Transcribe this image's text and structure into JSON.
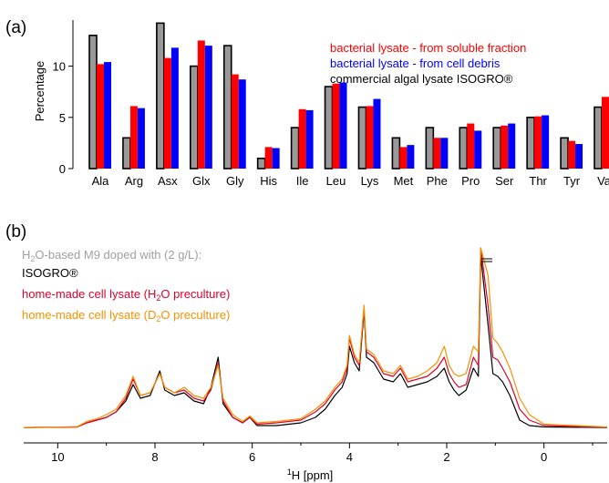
{
  "panel_a": {
    "label": "(a)",
    "legend": [
      {
        "text": "bacterial lysate - from soluble fraction",
        "color": "#ff0000"
      },
      {
        "text": "bacterial lysate - from cell debris",
        "color": "#0000ff"
      },
      {
        "text": "commercial algal lysate ISOGRO®",
        "color": "#000000"
      }
    ]
  },
  "panel_b": {
    "label": "(b)",
    "legend_header_pre": "H",
    "legend_header_sub": "2",
    "legend_header_post": "O-based M9 doped with (2 g/L):",
    "legend_isogro": "ISOGRO®",
    "legend_h2o_pre": "home-made cell lysate (H",
    "legend_h2o_sub": "2",
    "legend_h2o_post": "O preculture)",
    "legend_d2o_pre": "home-made cell lysate (D",
    "legend_d2o_sub": "2",
    "legend_d2o_post": "O preculture)",
    "xlabel_sup": "1",
    "xlabel_main": "H [ppm]"
  },
  "chart_data": [
    {
      "type": "bar",
      "ylabel": "Percentage",
      "ylim": [
        0,
        14.5
      ],
      "yticks": [
        0,
        5,
        10
      ],
      "categories": [
        "Ala",
        "Arg",
        "Asx",
        "Glx",
        "Gly",
        "His",
        "Ile",
        "Leu",
        "Lys",
        "Met",
        "Phe",
        "Pro",
        "Ser",
        "Thr",
        "Tyr",
        "Val"
      ],
      "series": [
        {
          "name": "commercial algal lysate ISOGRO®",
          "color": "#999999",
          "values": [
            13,
            3,
            14.2,
            10,
            12,
            1,
            4,
            8,
            6,
            3,
            4,
            4,
            4,
            5,
            3,
            6
          ]
        },
        {
          "name": "bacterial lysate - from soluble fraction",
          "color": "#ff0000",
          "values": [
            10.2,
            6.1,
            10.8,
            12.5,
            9.2,
            2.1,
            5.8,
            8.3,
            6.1,
            2.1,
            3,
            4.4,
            4.2,
            5.1,
            2.7,
            7
          ]
        },
        {
          "name": "bacterial lysate - from cell debris",
          "color": "#0000ff",
          "values": [
            10.4,
            5.9,
            11.8,
            12,
            8.7,
            2,
            5.7,
            8.4,
            6.8,
            2.3,
            3,
            3.7,
            4.4,
            5.2,
            2.4,
            7
          ]
        }
      ],
      "legend_position": "top-right"
    },
    {
      "type": "line",
      "xlim": [
        10.7,
        -1.3
      ],
      "xticks": [
        10,
        8,
        6,
        4,
        2,
        0
      ],
      "series": [
        {
          "name": "ISOGRO®",
          "color": "#000000",
          "points": [
            [
              10.7,
              0.3
            ],
            [
              9.6,
              0.5
            ],
            [
              9.4,
              2
            ],
            [
              9.2,
              3
            ],
            [
              9.0,
              4
            ],
            [
              8.8,
              6
            ],
            [
              8.6,
              10
            ],
            [
              8.45,
              16
            ],
            [
              8.3,
              11
            ],
            [
              8.1,
              12
            ],
            [
              7.9,
              21
            ],
            [
              7.8,
              14
            ],
            [
              7.6,
              12
            ],
            [
              7.4,
              13
            ],
            [
              7.2,
              10
            ],
            [
              7.0,
              9
            ],
            [
              6.85,
              15
            ],
            [
              6.7,
              26
            ],
            [
              6.6,
              9
            ],
            [
              6.4,
              4
            ],
            [
              6.2,
              2
            ],
            [
              6.05,
              4
            ],
            [
              5.9,
              1
            ],
            [
              5.5,
              1
            ],
            [
              5.0,
              2
            ],
            [
              4.7,
              4
            ],
            [
              4.5,
              7
            ],
            [
              4.3,
              12
            ],
            [
              4.15,
              15
            ],
            [
              4.05,
              20
            ],
            [
              4.0,
              30
            ],
            [
              3.9,
              24
            ],
            [
              3.8,
              21
            ],
            [
              3.7,
              43
            ],
            [
              3.65,
              26
            ],
            [
              3.5,
              24
            ],
            [
              3.3,
              18
            ],
            [
              3.1,
              17
            ],
            [
              2.95,
              20
            ],
            [
              2.8,
              15
            ],
            [
              2.6,
              16
            ],
            [
              2.4,
              17
            ],
            [
              2.2,
              19
            ],
            [
              2.05,
              22
            ],
            [
              1.95,
              17
            ],
            [
              1.85,
              14
            ],
            [
              1.75,
              12
            ],
            [
              1.6,
              14
            ],
            [
              1.45,
              22
            ],
            [
              1.35,
              19
            ],
            [
              1.3,
              63
            ],
            [
              1.15,
              38
            ],
            [
              1.05,
              20
            ],
            [
              0.95,
              19
            ],
            [
              0.85,
              17
            ],
            [
              0.7,
              12
            ],
            [
              0.5,
              3
            ],
            [
              0.3,
              1
            ],
            [
              0,
              0.5
            ],
            [
              -1.3,
              0.3
            ]
          ]
        },
        {
          "name": "home-made cell lysate (H2O preculture)",
          "color": "#e0002a",
          "points": [
            [
              10.7,
              0.3
            ],
            [
              9.6,
              0.5
            ],
            [
              9.4,
              2
            ],
            [
              9.2,
              3
            ],
            [
              9.0,
              4
            ],
            [
              8.8,
              6
            ],
            [
              8.6,
              11
            ],
            [
              8.45,
              18
            ],
            [
              8.3,
              12
            ],
            [
              8.1,
              13
            ],
            [
              7.9,
              20
            ],
            [
              7.8,
              15
            ],
            [
              7.6,
              13
            ],
            [
              7.4,
              14
            ],
            [
              7.2,
              11
            ],
            [
              7.0,
              10
            ],
            [
              6.85,
              14
            ],
            [
              6.7,
              24
            ],
            [
              6.6,
              10
            ],
            [
              6.4,
              4
            ],
            [
              6.2,
              2
            ],
            [
              6.05,
              4
            ],
            [
              5.9,
              1.5
            ],
            [
              5.5,
              2
            ],
            [
              5.0,
              3
            ],
            [
              4.7,
              6
            ],
            [
              4.5,
              9
            ],
            [
              4.3,
              14
            ],
            [
              4.15,
              17
            ],
            [
              4.05,
              22
            ],
            [
              4.0,
              33
            ],
            [
              3.9,
              26
            ],
            [
              3.8,
              23
            ],
            [
              3.7,
              44
            ],
            [
              3.65,
              28
            ],
            [
              3.5,
              26
            ],
            [
              3.3,
              20
            ],
            [
              3.1,
              19
            ],
            [
              2.95,
              22
            ],
            [
              2.8,
              17
            ],
            [
              2.6,
              18
            ],
            [
              2.4,
              19
            ],
            [
              2.2,
              22
            ],
            [
              2.05,
              26
            ],
            [
              1.95,
              20
            ],
            [
              1.85,
              17
            ],
            [
              1.75,
              15
            ],
            [
              1.6,
              16
            ],
            [
              1.45,
              26
            ],
            [
              1.35,
              23
            ],
            [
              1.3,
              66
            ],
            [
              1.15,
              45
            ],
            [
              1.05,
              26
            ],
            [
              0.95,
              25
            ],
            [
              0.85,
              22
            ],
            [
              0.7,
              17
            ],
            [
              0.5,
              7
            ],
            [
              0.3,
              3
            ],
            [
              0,
              1
            ],
            [
              -1.3,
              0.4
            ]
          ]
        },
        {
          "name": "home-made cell lysate (D2O preculture)",
          "color": "#f39200",
          "points": [
            [
              10.7,
              0.3
            ],
            [
              9.6,
              0.6
            ],
            [
              9.4,
              2.5
            ],
            [
              9.2,
              3.5
            ],
            [
              9.0,
              5
            ],
            [
              8.8,
              7
            ],
            [
              8.6,
              12
            ],
            [
              8.45,
              19
            ],
            [
              8.3,
              12
            ],
            [
              8.1,
              13
            ],
            [
              7.9,
              20
            ],
            [
              7.8,
              15
            ],
            [
              7.6,
              13
            ],
            [
              7.4,
              15
            ],
            [
              7.2,
              12
            ],
            [
              7.0,
              11
            ],
            [
              6.85,
              15
            ],
            [
              6.7,
              23
            ],
            [
              6.6,
              11
            ],
            [
              6.4,
              5
            ],
            [
              6.2,
              2.5
            ],
            [
              6.05,
              4.5
            ],
            [
              5.9,
              2
            ],
            [
              5.5,
              2.5
            ],
            [
              5.0,
              3.5
            ],
            [
              4.7,
              7
            ],
            [
              4.5,
              10
            ],
            [
              4.3,
              15
            ],
            [
              4.15,
              18
            ],
            [
              4.05,
              23
            ],
            [
              4.0,
              34
            ],
            [
              3.9,
              27
            ],
            [
              3.8,
              24
            ],
            [
              3.7,
              45
            ],
            [
              3.65,
              29
            ],
            [
              3.5,
              27
            ],
            [
              3.3,
              21
            ],
            [
              3.1,
              20
            ],
            [
              2.95,
              23
            ],
            [
              2.8,
              18
            ],
            [
              2.6,
              19
            ],
            [
              2.4,
              21
            ],
            [
              2.2,
              24
            ],
            [
              2.05,
              30
            ],
            [
              1.95,
              23
            ],
            [
              1.85,
              20
            ],
            [
              1.75,
              19
            ],
            [
              1.6,
              20
            ],
            [
              1.45,
              30
            ],
            [
              1.35,
              28
            ],
            [
              1.3,
              66
            ],
            [
              1.15,
              56
            ],
            [
              1.05,
              33
            ],
            [
              0.95,
              31
            ],
            [
              0.85,
              28
            ],
            [
              0.7,
              22
            ],
            [
              0.5,
              11
            ],
            [
              0.3,
              5
            ],
            [
              0,
              1.5
            ],
            [
              -1.3,
              0.5
            ]
          ]
        }
      ]
    }
  ]
}
